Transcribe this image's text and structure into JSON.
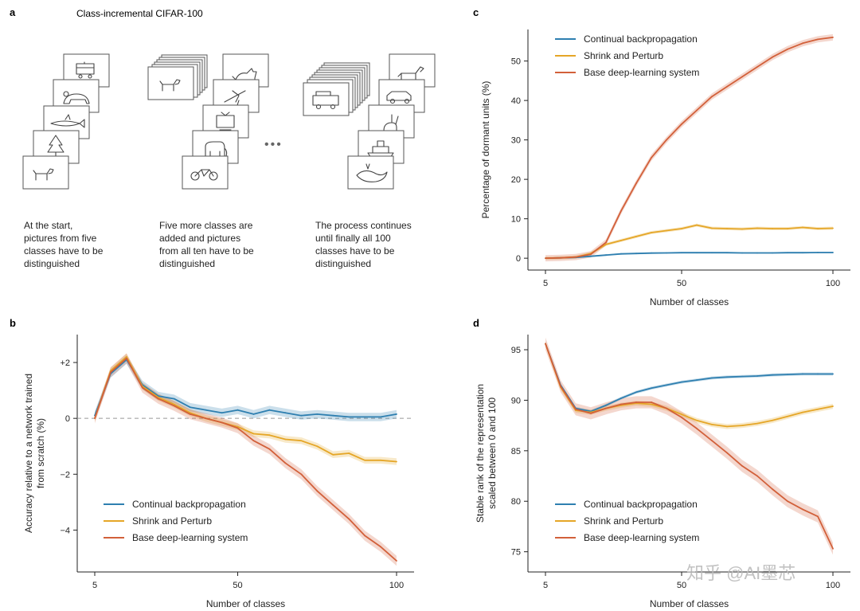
{
  "figure_title": "Class-incremental CIFAR-100",
  "panel_a": {
    "letter": "a",
    "captions": [
      [
        "At the start,",
        "pictures from five",
        "classes have to be",
        "distinguished"
      ],
      [
        "Five more classes are",
        "added and pictures",
        "from all ten have to be",
        "distinguished"
      ],
      [
        "The process continues",
        "until finally all 100",
        "classes have to be",
        "distinguished"
      ]
    ],
    "ellipsis": "•••",
    "stack1_icons": [
      "train-icon",
      "bear-icon",
      "shark-icon",
      "tree-icon",
      "dog-icon"
    ],
    "stack2_icons": [
      "cat-icon",
      "plane-icon",
      "tv-icon",
      "elephant-icon",
      "bicycle-icon"
    ],
    "stack2_front_icon": "dog-icon",
    "stack3_icons": [
      "horse-icon",
      "car-icon",
      "rabbit-icon",
      "ship-icon",
      "whale-icon"
    ],
    "stack3_front_icon": "firetruck-icon"
  },
  "colors": {
    "continual": "#2e7fb0",
    "shrink": "#e5a627",
    "base": "#d2603a"
  },
  "watermark": "知乎 @AI墨芯",
  "chart_data": [
    {
      "id": "b",
      "letter": "b",
      "type": "line",
      "title": "",
      "xlabel": "Number of classes",
      "ylabel_lines": [
        "Accuracy relative to a network trained",
        "from scratch (%)"
      ],
      "xlim": [
        5,
        100
      ],
      "ylim": [
        -5.5,
        3
      ],
      "xticks": [
        5,
        50,
        100
      ],
      "xtick_labels": [
        "5",
        "50",
        "100"
      ],
      "yticks": [
        2,
        0,
        -2,
        -4
      ],
      "ytick_labels": [
        "+2",
        "0",
        "−2",
        "−4"
      ],
      "zero_line": true,
      "legend": "lower-left",
      "legend_labels": [
        "Continual backpropagation",
        "Shrink and Perturb",
        "Base deep-learning system"
      ],
      "x": [
        5,
        10,
        15,
        20,
        25,
        30,
        35,
        40,
        45,
        50,
        55,
        60,
        65,
        70,
        75,
        80,
        85,
        90,
        95,
        100
      ],
      "series": [
        {
          "name": "Continual backpropagation",
          "color_key": "continual",
          "values": [
            0.1,
            1.6,
            2.1,
            1.2,
            0.8,
            0.7,
            0.4,
            0.3,
            0.2,
            0.3,
            0.15,
            0.3,
            0.2,
            0.1,
            0.15,
            0.1,
            0.05,
            0.05,
            0.05,
            0.15
          ],
          "band": 0.15
        },
        {
          "name": "Shrink and Perturb",
          "color_key": "shrink",
          "values": [
            0.0,
            1.7,
            2.2,
            1.15,
            0.75,
            0.5,
            0.2,
            0.0,
            -0.15,
            -0.3,
            -0.55,
            -0.6,
            -0.75,
            -0.8,
            -1.0,
            -1.3,
            -1.25,
            -1.5,
            -1.5,
            -1.55
          ],
          "band": 0.12
        },
        {
          "name": "Base deep-learning system",
          "color_key": "base",
          "values": [
            0.0,
            1.65,
            2.15,
            1.1,
            0.7,
            0.45,
            0.15,
            0.0,
            -0.15,
            -0.35,
            -0.8,
            -1.1,
            -1.6,
            -2.0,
            -2.6,
            -3.1,
            -3.6,
            -4.2,
            -4.6,
            -5.1
          ],
          "band": 0.18
        }
      ]
    },
    {
      "id": "c",
      "letter": "c",
      "type": "line",
      "title": "",
      "xlabel": "Number of classes",
      "ylabel_lines": [
        "Percentage of dormant units (%)"
      ],
      "xlim": [
        5,
        100
      ],
      "ylim": [
        -3,
        58
      ],
      "xticks": [
        5,
        50,
        100
      ],
      "xtick_labels": [
        "5",
        "50",
        "100"
      ],
      "yticks": [
        0,
        10,
        20,
        30,
        40,
        50
      ],
      "ytick_labels": [
        "0",
        "10",
        "20",
        "30",
        "40",
        "50"
      ],
      "zero_line": false,
      "legend": "top-left",
      "legend_labels": [
        "Continual backpropagation",
        "Shrink and Perturb",
        "Base deep-learning system"
      ],
      "x": [
        5,
        10,
        15,
        20,
        25,
        30,
        35,
        40,
        45,
        50,
        55,
        60,
        65,
        70,
        75,
        80,
        85,
        90,
        95,
        100
      ],
      "series": [
        {
          "name": "Continual backpropagation",
          "color_key": "continual",
          "values": [
            0.0,
            0.1,
            0.2,
            0.5,
            0.8,
            1.1,
            1.2,
            1.3,
            1.35,
            1.4,
            1.4,
            1.4,
            1.4,
            1.35,
            1.35,
            1.35,
            1.4,
            1.4,
            1.45,
            1.45
          ],
          "band": 0.2
        },
        {
          "name": "Shrink and Perturb",
          "color_key": "shrink",
          "values": [
            0.0,
            0.1,
            0.3,
            1.2,
            3.5,
            4.5,
            5.5,
            6.5,
            7.0,
            7.5,
            8.4,
            7.6,
            7.5,
            7.4,
            7.6,
            7.5,
            7.5,
            7.8,
            7.5,
            7.6
          ],
          "band": 0.4
        },
        {
          "name": "Base deep-learning system",
          "color_key": "base",
          "values": [
            0.0,
            0.1,
            0.3,
            1.0,
            4.0,
            12.0,
            19.0,
            25.5,
            30.0,
            34.0,
            37.5,
            41.0,
            43.5,
            46.0,
            48.5,
            51.0,
            53.0,
            54.5,
            55.5,
            56.0
          ],
          "band": 0.8
        }
      ]
    },
    {
      "id": "d",
      "letter": "d",
      "type": "line",
      "title": "",
      "xlabel": "Number of classes",
      "ylabel_lines": [
        "Stable rank of the representation",
        "scaled between 0 and 100"
      ],
      "xlim": [
        5,
        100
      ],
      "ylim": [
        73,
        96.5
      ],
      "xticks": [
        5,
        50,
        100
      ],
      "xtick_labels": [
        "5",
        "50",
        "100"
      ],
      "yticks": [
        95,
        90,
        85,
        80,
        75
      ],
      "ytick_labels": [
        "95",
        "90",
        "85",
        "80",
        "75"
      ],
      "zero_line": false,
      "legend": "lower-left",
      "legend_labels": [
        "Continual backpropagation",
        "Shrink and Perturb",
        "Base deep-learning system"
      ],
      "x": [
        5,
        10,
        15,
        20,
        25,
        30,
        35,
        40,
        45,
        50,
        55,
        60,
        65,
        70,
        75,
        80,
        85,
        90,
        95,
        100
      ],
      "series": [
        {
          "name": "Continual backpropagation",
          "color_key": "continual",
          "values": [
            95.6,
            91.5,
            89.2,
            88.9,
            89.5,
            90.2,
            90.8,
            91.2,
            91.5,
            91.8,
            92.0,
            92.2,
            92.3,
            92.35,
            92.4,
            92.5,
            92.55,
            92.6,
            92.6,
            92.6
          ],
          "band": 0.15
        },
        {
          "name": "Shrink and Perturb",
          "color_key": "shrink",
          "values": [
            95.6,
            91.3,
            89.0,
            88.8,
            89.2,
            89.5,
            89.7,
            89.6,
            89.2,
            88.6,
            88.0,
            87.6,
            87.4,
            87.5,
            87.7,
            88.0,
            88.4,
            88.8,
            89.1,
            89.4
          ],
          "band": 0.25
        },
        {
          "name": "Base deep-learning system",
          "color_key": "base",
          "values": [
            95.6,
            91.4,
            89.1,
            88.7,
            89.2,
            89.6,
            89.8,
            89.8,
            89.2,
            88.3,
            87.2,
            86.0,
            84.8,
            83.5,
            82.5,
            81.2,
            80.0,
            79.2,
            78.5,
            75.3
          ],
          "band": 0.6
        }
      ]
    }
  ]
}
